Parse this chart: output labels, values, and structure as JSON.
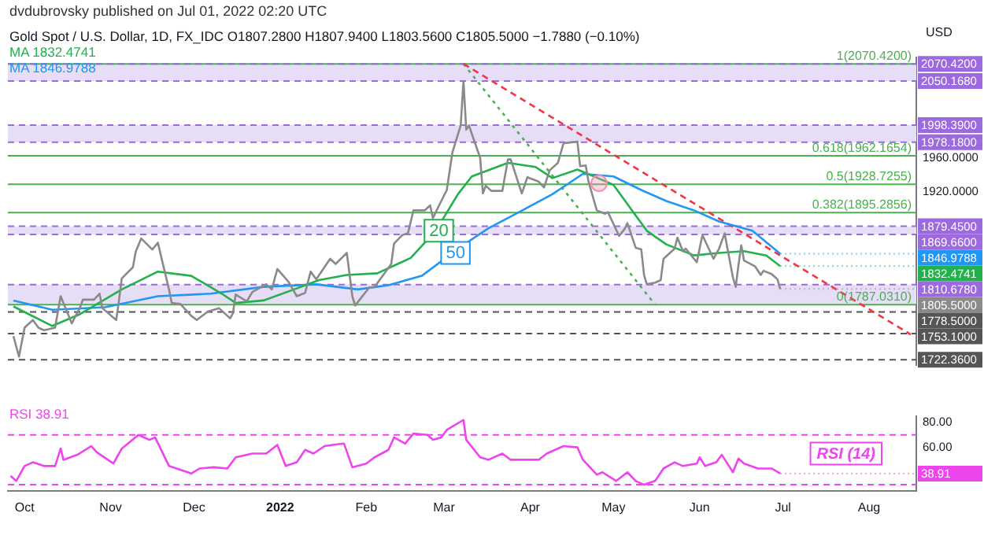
{
  "chart_data": [
    {
      "type": "line",
      "title": "Gold Spot / U.S. Dollar, 1D, FX_IDC O1807.2800 H1807.9400 L1803.5600 C1805.5000 −1.7880 (−0.10%)",
      "subtitle": "dvdubrovsky published on Jul 01, 2022 02:20 UTC",
      "ylabel": "USD",
      "legend": "top left",
      "grid": false,
      "tick_labels": "y",
      "xlim": [
        "2021-09-25",
        "2022-08-18"
      ],
      "ylim": [
        1716,
        2078
      ],
      "yticks": [
        {
          "value": 1920,
          "label": "1920.0000"
        },
        {
          "value": 1960,
          "label": "1960.0000"
        }
      ],
      "series": [
        {
          "color": "#8a8a8a",
          "x": [
            "2021-09-27",
            "2021-09-29",
            "2021-10-01",
            "2021-10-04",
            "2021-10-06",
            "2021-10-08",
            "2021-10-12",
            "2021-10-14",
            "2021-10-18",
            "2021-10-21",
            "2021-10-22",
            "2021-10-26",
            "2021-10-28",
            "2021-10-29",
            "2021-11-03",
            "2021-11-04",
            "2021-11-05",
            "2021-11-09",
            "2021-11-10",
            "2021-11-12",
            "2021-11-16",
            "2021-11-18",
            "2021-11-19",
            "2021-11-22",
            "2021-11-23",
            "2021-11-26",
            "2021-11-30",
            "2021-12-02",
            "2021-12-06",
            "2021-12-10",
            "2021-12-14",
            "2021-12-15",
            "2021-12-16",
            "2021-12-20",
            "2021-12-22",
            "2021-12-27",
            "2021-12-29",
            "2021-12-31",
            "2022-01-04",
            "2022-01-07",
            "2022-01-10",
            "2022-01-12",
            "2022-01-14",
            "2022-01-19",
            "2022-01-21",
            "2022-01-25",
            "2022-01-27",
            "2022-01-28",
            "2022-02-02",
            "2022-02-04",
            "2022-02-08",
            "2022-02-10",
            "2022-02-11",
            "2022-02-14",
            "2022-02-16",
            "2022-02-18",
            "2022-02-22",
            "2022-02-24",
            "2022-02-25",
            "2022-02-28",
            "2022-03-02",
            "2022-03-04",
            "2022-03-07",
            "2022-03-08",
            "2022-03-09",
            "2022-03-10",
            "2022-03-11",
            "2022-03-14",
            "2022-03-15",
            "2022-03-16",
            "2022-03-18",
            "2022-03-22",
            "2022-03-24",
            "2022-03-25",
            "2022-03-29",
            "2022-03-31",
            "2022-04-04",
            "2022-04-06",
            "2022-04-08",
            "2022-04-11",
            "2022-04-13",
            "2022-04-18",
            "2022-04-19",
            "2022-04-21",
            "2022-04-22",
            "2022-04-25",
            "2022-04-28",
            "2022-04-29",
            "2022-05-03",
            "2022-05-05",
            "2022-05-06",
            "2022-05-09",
            "2022-05-11",
            "2022-05-12",
            "2022-05-13",
            "2022-05-16",
            "2022-05-18",
            "2022-05-19",
            "2022-05-23",
            "2022-05-24",
            "2022-05-26",
            "2022-05-27",
            "2022-05-31",
            "2022-06-02",
            "2022-06-06",
            "2022-06-08",
            "2022-06-10",
            "2022-06-13",
            "2022-06-14",
            "2022-06-15",
            "2022-06-16",
            "2022-06-17",
            "2022-06-21",
            "2022-06-23",
            "2022-06-24",
            "2022-06-27",
            "2022-06-28",
            "2022-06-29",
            "2022-06-30"
          ],
          "values": [
            1750,
            1726,
            1760,
            1769,
            1760,
            1757,
            1760,
            1797,
            1765,
            1784,
            1793,
            1793,
            1800,
            1783,
            1769,
            1792,
            1818,
            1831,
            1849,
            1865,
            1852,
            1860,
            1846,
            1805,
            1789,
            1788,
            1774,
            1769,
            1779,
            1783,
            1771,
            1777,
            1799,
            1791,
            1802,
            1811,
            1805,
            1829,
            1814,
            1797,
            1801,
            1826,
            1817,
            1841,
            1835,
            1848,
            1797,
            1786,
            1807,
            1808,
            1826,
            1835,
            1859,
            1869,
            1871,
            1898,
            1898,
            1904,
            1889,
            1909,
            1922,
            1966,
            1998,
            2050,
            1993,
            1998,
            1988,
            1960,
            1918,
            1927,
            1921,
            1921,
            1958,
            1958,
            1918,
            1937,
            1932,
            1925,
            1945,
            1954,
            1977,
            1979,
            1950,
            1951,
            1932,
            1898,
            1894,
            1896,
            1868,
            1876,
            1883,
            1854,
            1852,
            1822,
            1811,
            1813,
            1816,
            1841,
            1853,
            1866,
            1850,
            1853,
            1837,
            1869,
            1841,
            1853,
            1871,
            1819,
            1808,
            1834,
            1857,
            1839,
            1832,
            1822,
            1827,
            1823,
            1820,
            1817,
            1805.5
          ]
        },
        {
          "name": "MA 1832.4741",
          "color": "#22b14c",
          "x": [
            "2021-09-27",
            "2021-10-11",
            "2021-10-21",
            "2021-11-05",
            "2021-11-18",
            "2021-11-30",
            "2021-12-11",
            "2021-12-16",
            "2021-12-26",
            "2022-01-06",
            "2022-01-15",
            "2022-01-25",
            "2022-02-05",
            "2022-02-17",
            "2022-02-26",
            "2022-03-06",
            "2022-03-11",
            "2022-03-24",
            "2022-04-03",
            "2022-04-09",
            "2022-04-18",
            "2022-04-24",
            "2022-05-01",
            "2022-05-07",
            "2022-05-13",
            "2022-05-20",
            "2022-05-30",
            "2022-06-08",
            "2022-06-17",
            "2022-06-25",
            "2022-06-30"
          ],
          "values": [
            1785,
            1762,
            1776,
            1805,
            1826,
            1821,
            1800,
            1789,
            1792,
            1805,
            1816,
            1822,
            1824,
            1842,
            1874,
            1917,
            1938,
            1954,
            1949,
            1936,
            1946,
            1938,
            1928,
            1901,
            1874,
            1858,
            1845,
            1848,
            1850,
            1845,
            1832.4741
          ]
        },
        {
          "name": "MA 1846.9788",
          "color": "#2196f3",
          "x": [
            "2021-09-27",
            "2021-10-11",
            "2021-10-30",
            "2021-11-18",
            "2021-12-07",
            "2021-12-26",
            "2022-01-14",
            "2022-01-29",
            "2022-02-09",
            "2022-02-21",
            "2022-03-04",
            "2022-03-06",
            "2022-03-17",
            "2022-03-28",
            "2022-04-09",
            "2022-04-20",
            "2022-05-01",
            "2022-05-11",
            "2022-05-20",
            "2022-05-30",
            "2022-06-08",
            "2022-06-20",
            "2022-06-30"
          ],
          "values": [
            1792,
            1781,
            1784,
            1797,
            1800,
            1808,
            1811,
            1805,
            1810,
            1821,
            1848,
            1853,
            1877,
            1896,
            1917,
            1941,
            1938,
            1922,
            1909,
            1898,
            1885,
            1874,
            1846.9788
          ]
        },
        {
          "color": "#f23645",
          "line_style": "dashed",
          "x": [
            "2022-03-08",
            "2022-08-16"
          ],
          "values": [
            2070.42,
            1752
          ]
        },
        {
          "color": "#4caf50",
          "line_style": "dotted",
          "x": [
            "2022-03-08",
            "2022-05-16"
          ],
          "values": [
            2070.42,
            1787.031
          ]
        }
      ],
      "bands": [
        {
          "axis": "y",
          "from": 2050.168,
          "to": 2070.42,
          "color": "#e6ddf7"
        },
        {
          "axis": "y",
          "from": 1978.18,
          "to": 1998.39,
          "color": "#e6ddf7"
        },
        {
          "axis": "y",
          "from": 1869.66,
          "to": 1879.45,
          "color": "#e6ddf7"
        },
        {
          "axis": "y",
          "from": 1787.031,
          "to": 1810.678,
          "color": "#e6ddf7"
        }
      ],
      "ref_lines": [
        {
          "axis": "y",
          "value": 2070.42,
          "label": "1(2070.4200)",
          "color": "#4caf50",
          "line_style": "solid"
        },
        {
          "axis": "y",
          "value": 1962.1654,
          "label": "0.618(1962.1654)",
          "color": "#4caf50",
          "line_style": "solid"
        },
        {
          "axis": "y",
          "value": 1928.7255,
          "label": "0.5(1928.7255)",
          "color": "#4caf50",
          "line_style": "solid"
        },
        {
          "axis": "y",
          "value": 1895.2856,
          "label": "0.382(1895.2856)",
          "color": "#4caf50",
          "line_style": "solid"
        },
        {
          "axis": "y",
          "value": 1787.031,
          "label": "0(1787.0310)",
          "color": "#4caf50",
          "line_style": "solid"
        },
        {
          "axis": "y",
          "value": 2070.42,
          "label": "2070.4200",
          "color": "#9c6ade",
          "line_style": "dashed"
        },
        {
          "axis": "y",
          "value": 2050.168,
          "label": "2050.1680",
          "color": "#9c6ade",
          "line_style": "dashed"
        },
        {
          "axis": "y",
          "value": 1998.39,
          "label": "1998.3900",
          "color": "#9c6ade",
          "line_style": "dashed"
        },
        {
          "axis": "y",
          "value": 1978.18,
          "label": "1978.1800",
          "color": "#9c6ade",
          "line_style": "dashed"
        },
        {
          "axis": "y",
          "value": 1879.45,
          "label": "1879.4500",
          "color": "#9c6ade",
          "line_style": "dashed"
        },
        {
          "axis": "y",
          "value": 1869.66,
          "label": "1869.6600",
          "color": "#9c6ade",
          "line_style": "dashed"
        },
        {
          "axis": "y",
          "value": 1810.678,
          "label": "1810.6780",
          "color": "#9c6ade",
          "line_style": "dashed"
        },
        {
          "axis": "y",
          "value": 1778.5,
          "label": "1778.5000",
          "color": "#555555",
          "line_style": "dashed"
        },
        {
          "axis": "y",
          "value": 1753.1,
          "label": "1753.1000",
          "color": "#555555",
          "line_style": "dashed"
        },
        {
          "axis": "y",
          "value": 1722.36,
          "label": "1722.3600",
          "color": "#555555",
          "line_style": "dashed"
        }
      ],
      "annotations": [
        {
          "text": "20",
          "x": "2022-02-26",
          "y": 1874
        },
        {
          "text": "50",
          "x": "2022-03-04",
          "y": 1848
        },
        {
          "text": "1846.9788",
          "x": "2022-06-30",
          "y": 1846.9788
        },
        {
          "text": "1832.4741",
          "x": "2022-06-30",
          "y": 1832.4741
        },
        {
          "text": "1805.5000",
          "x": "2022-06-30",
          "y": 1805.5
        }
      ]
    },
    {
      "type": "line",
      "legend": "top left",
      "grid": false,
      "xlim": [
        "2021-09-25",
        "2022-08-18"
      ],
      "xticks": [
        {
          "value": "2021-10-01",
          "label": "Oct"
        },
        {
          "value": "2021-11-01",
          "label": "Nov"
        },
        {
          "value": "2021-12-01",
          "label": "Dec"
        },
        {
          "value": "2022-01-01",
          "label": "2022"
        },
        {
          "value": "2022-02-01",
          "label": "Feb"
        },
        {
          "value": "2022-03-01",
          "label": "Mar"
        },
        {
          "value": "2022-04-01",
          "label": "Apr"
        },
        {
          "value": "2022-05-01",
          "label": "May"
        },
        {
          "value": "2022-06-01",
          "label": "Jun"
        },
        {
          "value": "2022-07-01",
          "label": "Jul"
        },
        {
          "value": "2022-08-01",
          "label": "Aug"
        }
      ],
      "ylim": [
        25,
        85
      ],
      "yticks": [
        {
          "value": 60,
          "label": "60.00"
        },
        {
          "value": 80,
          "label": "80.00"
        }
      ],
      "series": [
        {
          "name": "RSI 38.91",
          "color": "#ee44ee",
          "x": [
            "2021-09-26",
            "2021-09-28",
            "2021-10-01",
            "2021-10-04",
            "2021-10-08",
            "2021-10-12",
            "2021-10-14",
            "2021-10-15",
            "2021-10-20",
            "2021-10-25",
            "2021-10-27",
            "2021-11-02",
            "2021-11-05",
            "2021-11-11",
            "2021-11-15",
            "2021-11-17",
            "2021-11-22",
            "2021-11-26",
            "2021-11-30",
            "2021-12-03",
            "2021-12-08",
            "2021-12-13",
            "2021-12-16",
            "2021-12-22",
            "2021-12-27",
            "2021-12-31",
            "2022-01-03",
            "2022-01-07",
            "2022-01-10",
            "2022-01-13",
            "2022-01-17",
            "2022-01-20",
            "2022-01-24",
            "2022-01-27",
            "2022-02-01",
            "2022-02-04",
            "2022-02-09",
            "2022-02-11",
            "2022-02-15",
            "2022-02-18",
            "2022-02-23",
            "2022-02-25",
            "2022-02-28",
            "2022-03-02",
            "2022-03-08",
            "2022-03-09",
            "2022-03-14",
            "2022-03-17",
            "2022-03-22",
            "2022-03-25",
            "2022-03-29",
            "2022-04-04",
            "2022-04-07",
            "2022-04-13",
            "2022-04-18",
            "2022-04-20",
            "2022-04-25",
            "2022-04-27",
            "2022-05-02",
            "2022-05-06",
            "2022-05-09",
            "2022-05-12",
            "2022-05-16",
            "2022-05-19",
            "2022-05-23",
            "2022-05-26",
            "2022-05-31",
            "2022-06-01",
            "2022-06-03",
            "2022-06-07",
            "2022-06-09",
            "2022-06-13",
            "2022-06-15",
            "2022-06-17",
            "2022-06-22",
            "2022-06-27",
            "2022-06-30"
          ],
          "values": [
            37,
            33,
            45,
            48,
            45,
            45,
            59,
            50,
            54,
            61,
            56,
            47,
            59,
            70,
            66,
            68,
            45,
            42,
            39,
            43,
            44,
            43,
            52,
            55,
            55,
            62,
            45,
            48,
            58,
            55,
            61,
            62,
            63,
            44,
            47,
            52,
            58,
            68,
            63,
            71,
            70,
            66,
            68,
            74,
            82,
            66,
            52,
            50,
            55,
            50,
            50,
            50,
            55,
            61,
            60,
            50,
            38,
            40,
            33,
            40,
            33,
            30,
            33,
            43,
            48,
            45,
            47,
            52,
            45,
            48,
            54,
            40,
            51,
            47,
            43,
            43,
            38.91
          ]
        }
      ],
      "ref_lines": [
        {
          "axis": "y",
          "value": 70,
          "color": "#ee44ee",
          "line_style": "dashed"
        },
        {
          "axis": "y",
          "value": 30,
          "color": "#ee44ee",
          "line_style": "dashed"
        }
      ],
      "annotations": [
        "RSI (14)",
        {
          "text": "38.91",
          "x": "2022-06-30",
          "y": 38.91
        }
      ]
    }
  ]
}
